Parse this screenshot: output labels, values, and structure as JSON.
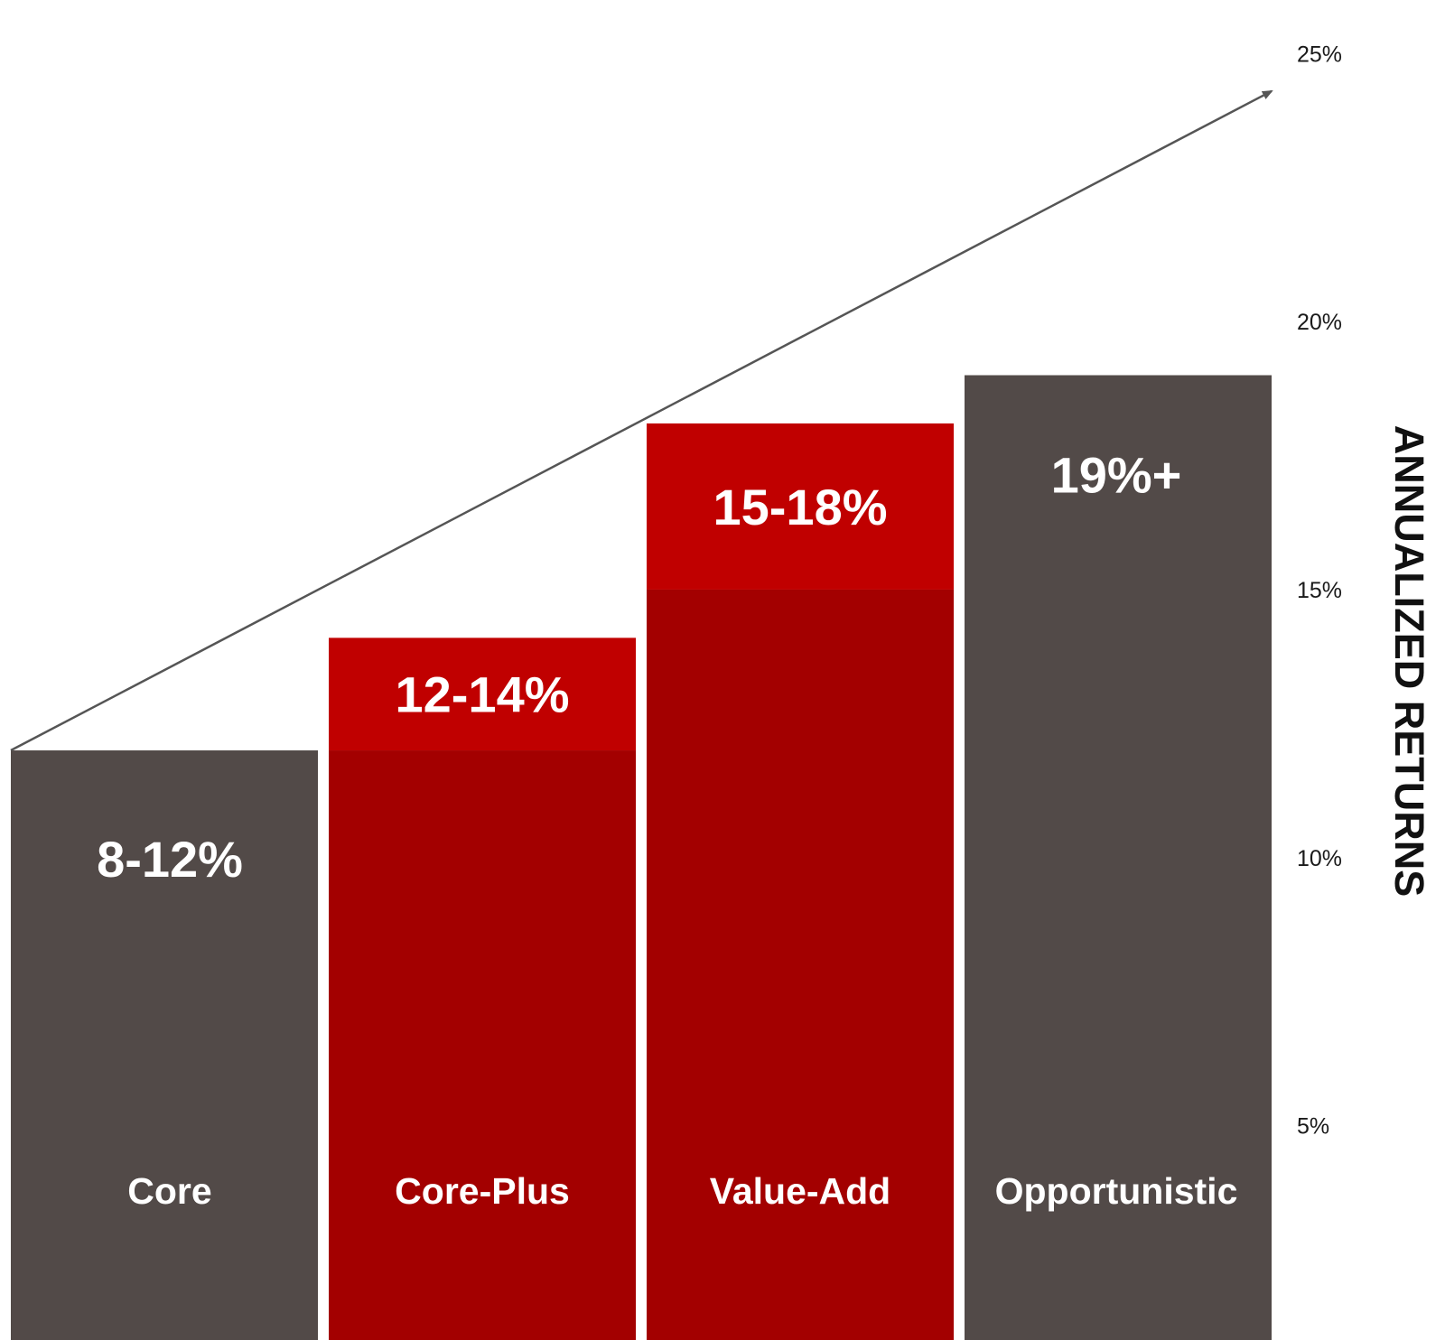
{
  "chart_data": {
    "type": "bar",
    "title": "",
    "xlabel": "",
    "ylabel": "ANNUALIZED RETURNS",
    "ylim": [
      1,
      26
    ],
    "y_ticks": [
      5,
      10,
      15,
      20,
      25
    ],
    "y_tick_labels": [
      "5%",
      "10%",
      "15%",
      "20%",
      "25%"
    ],
    "y_axis_side": "right",
    "grid": false,
    "legend": "none",
    "categories": [
      "Core",
      "Core-Plus",
      "Value-Add",
      "Opportunistic"
    ],
    "range_labels": [
      "8-12%",
      "12-14%",
      "15-18%",
      "19%+"
    ],
    "ranges": [
      {
        "low": 8,
        "high": 12
      },
      {
        "low": 12,
        "high": 14
      },
      {
        "low": 15,
        "high": 18
      },
      {
        "low": 19,
        "high": 19
      }
    ],
    "bar_base": [
      {
        "top": 12,
        "color": "#524a48"
      },
      {
        "top": 12,
        "color": "#a30000"
      },
      {
        "top": 15,
        "color": "#a30000"
      },
      {
        "top": 19,
        "color": "#524a48"
      }
    ],
    "bar_cap": [
      null,
      {
        "from": 12,
        "to": 14.1,
        "color": "#c00000"
      },
      {
        "from": 15,
        "to": 18.1,
        "color": "#c00000"
      },
      null
    ],
    "trend_arrow": {
      "from_value": 12,
      "to_value": 24.3,
      "color": "#555555"
    }
  }
}
